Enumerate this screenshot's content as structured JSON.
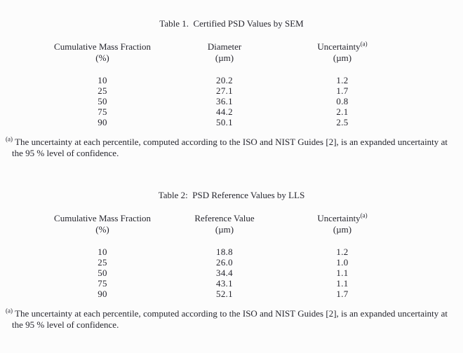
{
  "page": {
    "background": "#fcfcfc",
    "text_color": "#26262e"
  },
  "tables": [
    {
      "title": "Table 1.  Certified PSD Values by SEM",
      "columns": [
        {
          "label": "Cumulative Mass Fraction",
          "sup": "",
          "unit": "(%)"
        },
        {
          "label": "Diameter",
          "sup": "",
          "unit": "(µm)"
        },
        {
          "label": "Uncertainty",
          "sup": "(a)",
          "unit": "(µm)"
        }
      ],
      "rows": [
        [
          "10",
          "20.2",
          "1.2"
        ],
        [
          "25",
          "27.1",
          "1.7"
        ],
        [
          "50",
          "36.1",
          "0.8"
        ],
        [
          "75",
          "44.2",
          "2.1"
        ],
        [
          "90",
          "50.1",
          "2.5"
        ]
      ],
      "footnote": {
        "marker": "(a)",
        "text": "The uncertainty at each percentile, computed according to the ISO and NIST Guides [2], is an expanded uncertainty at the 95 % level of confidence."
      }
    },
    {
      "title": "Table 2:  PSD Reference Values by LLS",
      "columns": [
        {
          "label": "Cumulative Mass Fraction",
          "sup": "",
          "unit": "(%)"
        },
        {
          "label": "Reference Value",
          "sup": "",
          "unit": "(µm)"
        },
        {
          "label": "Uncertainty",
          "sup": "(a)",
          "unit": "(µm)"
        }
      ],
      "rows": [
        [
          "10",
          "18.8",
          "1.2"
        ],
        [
          "25",
          "26.0",
          "1.0"
        ],
        [
          "50",
          "34.4",
          "1.1"
        ],
        [
          "75",
          "43.1",
          "1.1"
        ],
        [
          "90",
          "52.1",
          "1.7"
        ]
      ],
      "footnote": {
        "marker": "(a)",
        "text": "The uncertainty at each percentile, computed according to the ISO and NIST Guides [2], is an expanded uncertainty at the 95 % level of confidence."
      }
    }
  ]
}
